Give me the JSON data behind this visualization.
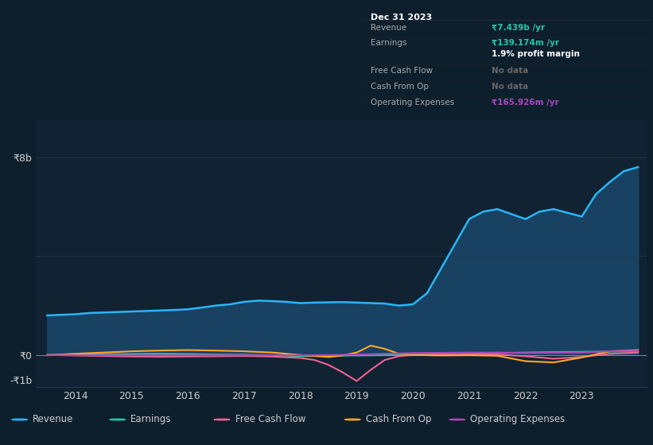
{
  "background_color": "#0d1f2d",
  "chart_bg_color": "#0d1f2d",
  "plot_bg_color": "#112233",
  "grid_color": "#1e3a4a",
  "text_color": "#cccccc",
  "title_color": "#ffffff",
  "ylabel_8b": "₹8b",
  "ylabel_0": "₹0",
  "ylabel_neg1b": "-₹1b",
  "xtick_labels": [
    "2014",
    "2015",
    "2016",
    "2017",
    "2018",
    "2019",
    "2020",
    "2021",
    "2022",
    "2023"
  ],
  "revenue_color": "#29b6f6",
  "earnings_color": "#26c6a6",
  "fcf_color": "#f06292",
  "cashfromop_color": "#ffa726",
  "opex_color": "#ab47bc",
  "revenue_fill_color": "#1a4a6e",
  "legend_items": [
    "Revenue",
    "Earnings",
    "Free Cash Flow",
    "Cash From Op",
    "Operating Expenses"
  ],
  "tooltip_bg": "#000000",
  "tooltip_border": "#333333",
  "tooltip_title": "Dec 31 2023",
  "tooltip_revenue": "₹7.439b /yr",
  "tooltip_earnings": "₹139.174m /yr",
  "tooltip_margin": "1.9% profit margin",
  "tooltip_fcf": "No data",
  "tooltip_cashop": "No data",
  "tooltip_opex": "₹165.926m /yr",
  "revenue_color_tooltip": "#26c6a6",
  "earnings_color_tooltip": "#26c6a6",
  "opex_color_tooltip": "#ab47bc",
  "ylim_min": -1300000000.0,
  "ylim_max": 9500000000.0,
  "revenue_x": [
    2013.5,
    2014.0,
    2014.25,
    2014.5,
    2014.75,
    2015.0,
    2015.25,
    2015.5,
    2015.75,
    2016.0,
    2016.25,
    2016.5,
    2016.75,
    2017.0,
    2017.25,
    2017.5,
    2017.75,
    2018.0,
    2018.25,
    2018.5,
    2018.75,
    2019.0,
    2019.25,
    2019.5,
    2019.75,
    2020.0,
    2020.25,
    2020.5,
    2020.75,
    2021.0,
    2021.25,
    2021.5,
    2021.75,
    2022.0,
    2022.25,
    2022.5,
    2022.75,
    2023.0,
    2023.25,
    2023.5,
    2023.75,
    2024.0
  ],
  "revenue_y": [
    1600000000.0,
    1650000000.0,
    1700000000.0,
    1720000000.0,
    1740000000.0,
    1760000000.0,
    1780000000.0,
    1800000000.0,
    1820000000.0,
    1850000000.0,
    1920000000.0,
    2000000000.0,
    2050000000.0,
    2150000000.0,
    2200000000.0,
    2180000000.0,
    2150000000.0,
    2100000000.0,
    2120000000.0,
    2130000000.0,
    2140000000.0,
    2120000000.0,
    2100000000.0,
    2080000000.0,
    2000000000.0,
    2050000000.0,
    2500000000.0,
    3500000000.0,
    4500000000.0,
    5500000000.0,
    5800000000.0,
    5900000000.0,
    5700000000.0,
    5500000000.0,
    5800000000.0,
    5900000000.0,
    5750000000.0,
    5600000000.0,
    6500000000.0,
    7000000000.0,
    7439000000.0,
    7600000000.0
  ],
  "earnings_x": [
    2013.5,
    2014.0,
    2014.5,
    2015.0,
    2015.5,
    2016.0,
    2016.5,
    2017.0,
    2017.5,
    2018.0,
    2018.5,
    2019.0,
    2019.5,
    2020.0,
    2020.5,
    2021.0,
    2021.5,
    2022.0,
    2022.5,
    2023.0,
    2023.5,
    2024.0
  ],
  "earnings_y": [
    0.0,
    20000000.0,
    30000000.0,
    40000000.0,
    50000000.0,
    40000000.0,
    20000000.0,
    10000000.0,
    -10000000.0,
    -50000000.0,
    -30000000.0,
    -20000000.0,
    -10000000.0,
    10000000.0,
    20000000.0,
    50000000.0,
    80000000.0,
    100000000.0,
    120000000.0,
    130000000.0,
    139000000.0,
    150000000.0
  ],
  "fcf_x": [
    2013.5,
    2014.0,
    2014.5,
    2015.0,
    2015.5,
    2016.0,
    2016.5,
    2017.0,
    2017.5,
    2018.0,
    2018.25,
    2018.5,
    2018.75,
    2019.0,
    2019.25,
    2019.5,
    2019.75,
    2020.0,
    2020.5,
    2021.0,
    2021.5,
    2022.0,
    2022.5,
    2023.0,
    2023.5,
    2024.0
  ],
  "fcf_y": [
    0.0,
    -20000000.0,
    -40000000.0,
    -60000000.0,
    -70000000.0,
    -60000000.0,
    -50000000.0,
    -40000000.0,
    -60000000.0,
    -120000000.0,
    -200000000.0,
    -400000000.0,
    -700000000.0,
    -1050000000.0,
    -600000000.0,
    -200000000.0,
    -50000000.0,
    0.0,
    20000000.0,
    20000000.0,
    20000000.0,
    -50000000.0,
    -150000000.0,
    -80000000.0,
    50000000.0,
    100000000.0
  ],
  "cashop_x": [
    2013.5,
    2014.0,
    2014.5,
    2015.0,
    2015.5,
    2016.0,
    2016.5,
    2017.0,
    2017.5,
    2018.0,
    2018.5,
    2018.75,
    2019.0,
    2019.25,
    2019.5,
    2019.75,
    2020.0,
    2020.5,
    2021.0,
    2021.5,
    2022.0,
    2022.5,
    2023.0,
    2023.5,
    2024.0
  ],
  "cashop_y": [
    -10000000.0,
    50000000.0,
    100000000.0,
    150000000.0,
    180000000.0,
    200000000.0,
    180000000.0,
    150000000.0,
    100000000.0,
    0.0,
    -80000000.0,
    -20000000.0,
    100000000.0,
    380000000.0,
    250000000.0,
    50000000.0,
    0.0,
    -20000000.0,
    -10000000.0,
    -30000000.0,
    -250000000.0,
    -300000000.0,
    -100000000.0,
    150000000.0,
    200000000.0
  ],
  "opex_x": [
    2013.5,
    2014.0,
    2014.5,
    2015.0,
    2015.5,
    2016.0,
    2016.5,
    2017.0,
    2017.5,
    2018.0,
    2018.5,
    2019.0,
    2019.5,
    2020.0,
    2020.5,
    2021.0,
    2021.5,
    2022.0,
    2022.5,
    2023.0,
    2023.5,
    2024.0
  ],
  "opex_y": [
    0.0,
    -10000000.0,
    -10000000.0,
    -10000000.0,
    -10000000.0,
    -10000000.0,
    -10000000.0,
    -10000000.0,
    -10000000.0,
    -10000000.0,
    0.0,
    20000000.0,
    50000000.0,
    80000000.0,
    90000000.0,
    100000000.0,
    100000000.0,
    80000000.0,
    90000000.0,
    100000000.0,
    155000000.0,
    170000000.0
  ]
}
